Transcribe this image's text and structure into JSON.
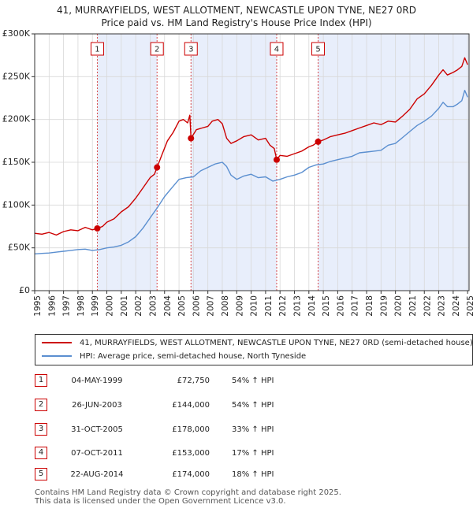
{
  "title_line1": "41, MURRAYFIELDS, WEST ALLOTMENT, NEWCASTLE UPON TYNE, NE27 0RD",
  "title_line2": "Price paid vs. HM Land Registry's House Price Index (HPI)",
  "legend": [
    {
      "label": "41, MURRAYFIELDS, WEST ALLOTMENT, NEWCASTLE UPON TYNE, NE27 0RD (semi-detached house)",
      "color": "#cc0000"
    },
    {
      "label": "HPI: Average price, semi-detached house, North Tyneside",
      "color": "#5b8fd0"
    }
  ],
  "transactions": [
    {
      "num": "1",
      "date": "04-MAY-1999",
      "price": "£72,750",
      "hpi": "54% ↑ HPI"
    },
    {
      "num": "2",
      "date": "26-JUN-2003",
      "price": "£144,000",
      "hpi": "54% ↑ HPI"
    },
    {
      "num": "3",
      "date": "31-OCT-2005",
      "price": "£178,000",
      "hpi": "33% ↑ HPI"
    },
    {
      "num": "4",
      "date": "07-OCT-2011",
      "price": "£153,000",
      "hpi": "17% ↑ HPI"
    },
    {
      "num": "5",
      "date": "22-AUG-2014",
      "price": "£174,000",
      "hpi": "18% ↑ HPI"
    }
  ],
  "footer_line1": "Contains HM Land Registry data © Crown copyright and database right 2025.",
  "footer_line2": "This data is licensed under the Open Government Licence v3.0.",
  "chart_data": {
    "type": "line",
    "xlim": [
      1995,
      2025.1
    ],
    "ylim": [
      0,
      300000
    ],
    "y_ticks": [
      0,
      50000,
      100000,
      150000,
      200000,
      250000,
      300000
    ],
    "y_tick_labels": [
      "£0",
      "£50K",
      "£100K",
      "£150K",
      "£200K",
      "£250K",
      "£300K"
    ],
    "x_ticks": [
      1995,
      1996,
      1997,
      1998,
      1999,
      2000,
      2001,
      2002,
      2003,
      2004,
      2005,
      2006,
      2007,
      2008,
      2009,
      2010,
      2011,
      2012,
      2013,
      2014,
      2015,
      2016,
      2017,
      2018,
      2019,
      2020,
      2021,
      2022,
      2023,
      2024,
      2025
    ],
    "grid": true,
    "shaded_intervals": [
      [
        1999.34,
        2003.48
      ],
      [
        2005.83,
        2011.77
      ],
      [
        2014.64,
        2025.1
      ]
    ],
    "sales": [
      {
        "label": "1",
        "x": 1999.34,
        "y": 72750
      },
      {
        "label": "2",
        "x": 2003.48,
        "y": 144000
      },
      {
        "label": "3",
        "x": 2005.83,
        "y": 178000
      },
      {
        "label": "4",
        "x": 2011.77,
        "y": 153000
      },
      {
        "label": "5",
        "x": 2014.64,
        "y": 174000
      }
    ],
    "series": [
      {
        "color": "#cc0000",
        "x": [
          1995,
          1995.5,
          1996,
          1996.5,
          1997,
          1997.5,
          1998,
          1998.5,
          1999,
          1999.34,
          1999.7,
          2000,
          2000.5,
          2001,
          2001.5,
          2002,
          2002.5,
          2003,
          2003.3,
          2003.48,
          2003.8,
          2004.2,
          2004.6,
          2005,
          2005.3,
          2005.6,
          2005.75,
          2005.83,
          2006.2,
          2006.6,
          2007,
          2007.3,
          2007.7,
          2008,
          2008.3,
          2008.6,
          2009,
          2009.5,
          2010,
          2010.5,
          2011,
          2011.3,
          2011.6,
          2011.77,
          2012,
          2012.5,
          2013,
          2013.5,
          2014,
          2014.3,
          2014.64,
          2015,
          2015.5,
          2016,
          2016.5,
          2017,
          2017.5,
          2018,
          2018.5,
          2019,
          2019.5,
          2020,
          2020.5,
          2021,
          2021.5,
          2022,
          2022.5,
          2023,
          2023.3,
          2023.6,
          2024,
          2024.3,
          2024.6,
          2024.8,
          2025
        ],
        "y": [
          67000,
          66000,
          68000,
          65000,
          69000,
          71000,
          70000,
          74000,
          71000,
          72750,
          75000,
          80000,
          84000,
          92000,
          98000,
          108000,
          120000,
          132000,
          136000,
          144000,
          158000,
          175000,
          185000,
          198000,
          200000,
          196000,
          205000,
          178000,
          188000,
          190000,
          192000,
          198000,
          200000,
          195000,
          178000,
          172000,
          175000,
          180000,
          182000,
          176000,
          178000,
          170000,
          166000,
          153000,
          158000,
          157000,
          160000,
          163000,
          168000,
          170000,
          174000,
          176000,
          180000,
          182000,
          184000,
          187000,
          190000,
          193000,
          196000,
          194000,
          198000,
          197000,
          204000,
          212000,
          224000,
          230000,
          240000,
          252000,
          258000,
          252000,
          255000,
          258000,
          262000,
          272000,
          264000
        ]
      },
      {
        "color": "#5b8fd0",
        "x": [
          1995,
          1995.5,
          1996,
          1996.5,
          1997,
          1997.5,
          1998,
          1998.5,
          1999,
          1999.5,
          2000,
          2000.5,
          2001,
          2001.5,
          2002,
          2002.5,
          2003,
          2003.5,
          2004,
          2004.5,
          2005,
          2005.5,
          2006,
          2006.5,
          2007,
          2007.5,
          2008,
          2008.3,
          2008.6,
          2009,
          2009.5,
          2010,
          2010.5,
          2011,
          2011.5,
          2012,
          2012.5,
          2013,
          2013.5,
          2014,
          2014.5,
          2015,
          2015.5,
          2016,
          2016.5,
          2017,
          2017.5,
          2018,
          2018.5,
          2019,
          2019.5,
          2020,
          2020.5,
          2021,
          2021.5,
          2022,
          2022.5,
          2023,
          2023.3,
          2023.6,
          2024,
          2024.3,
          2024.6,
          2024.8,
          2025
        ],
        "y": [
          43000,
          43500,
          44000,
          45000,
          46000,
          47000,
          48000,
          48500,
          47000,
          48000,
          50000,
          51000,
          53000,
          57000,
          63000,
          73000,
          85000,
          97000,
          110000,
          120000,
          130000,
          132000,
          133000,
          140000,
          144000,
          148000,
          150000,
          145000,
          135000,
          130000,
          134000,
          136000,
          132000,
          133000,
          128000,
          130000,
          133000,
          135000,
          138000,
          144000,
          147000,
          148000,
          151000,
          153000,
          155000,
          157000,
          161000,
          162000,
          163000,
          164000,
          170000,
          172000,
          179000,
          186000,
          193000,
          198000,
          204000,
          213000,
          220000,
          215000,
          215000,
          218000,
          222000,
          234000,
          226000
        ]
      }
    ]
  }
}
